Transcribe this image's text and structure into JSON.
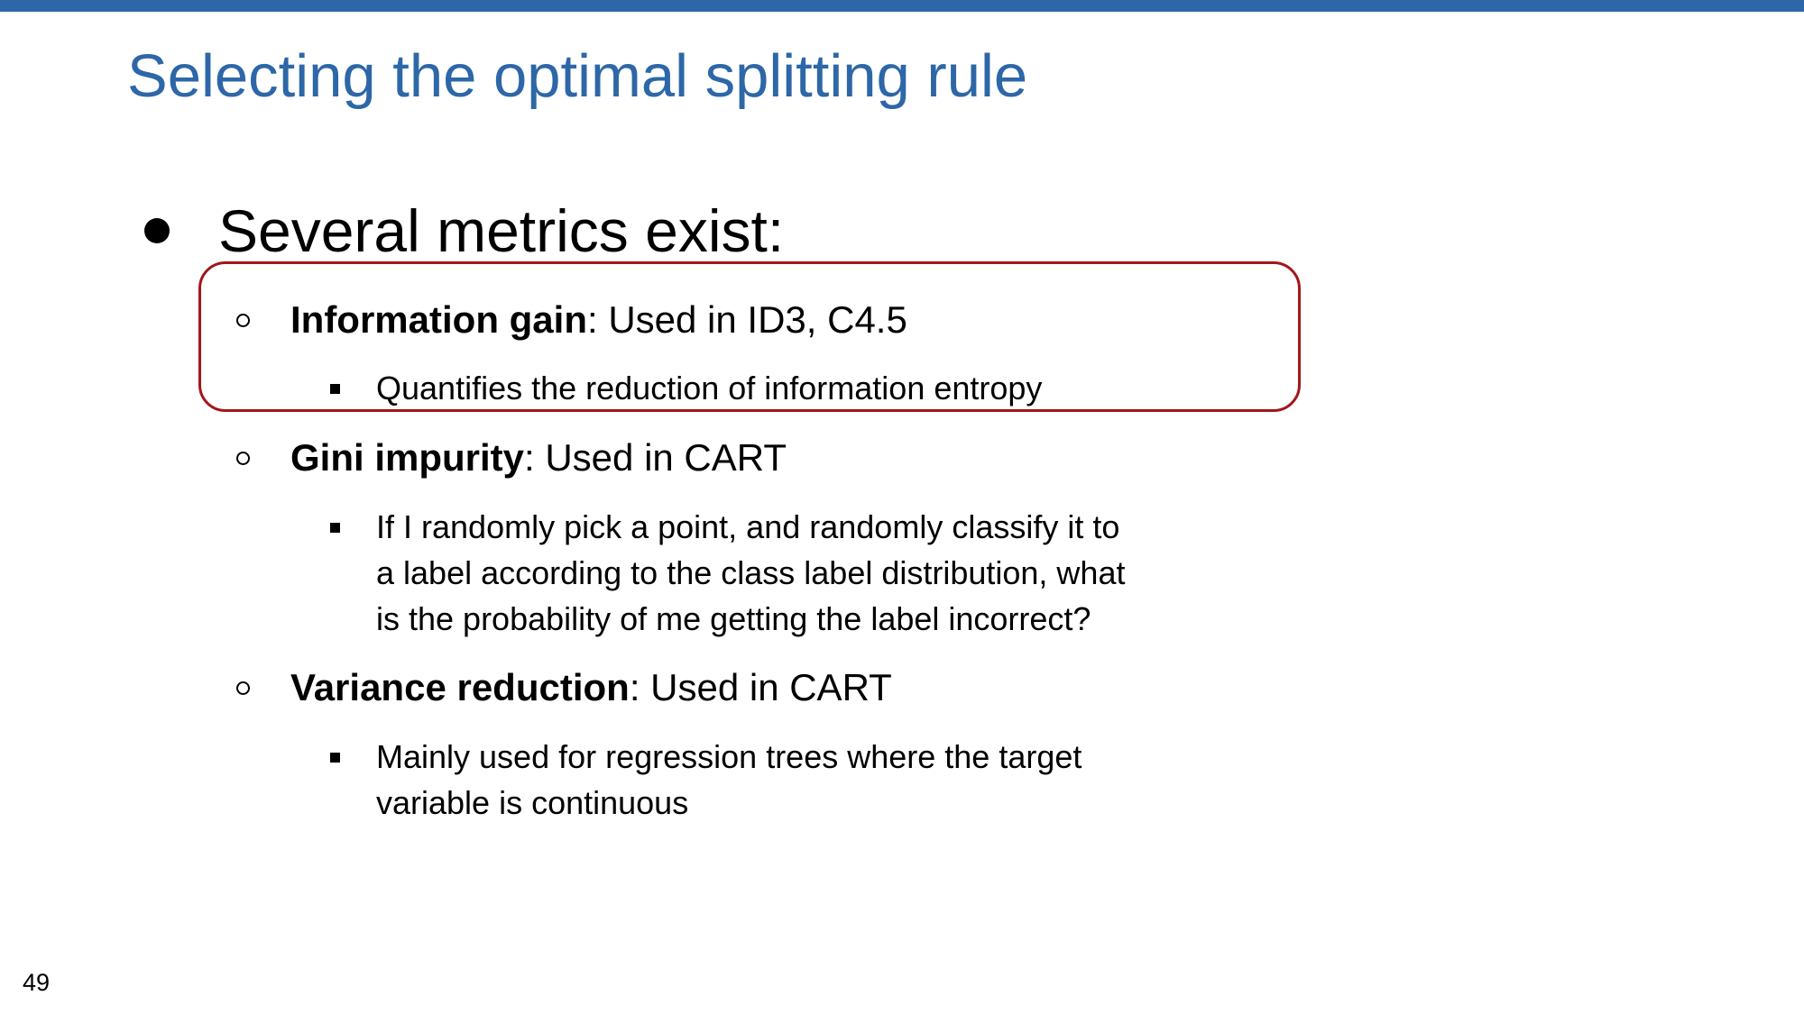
{
  "slide": {
    "title": "Selecting the optimal splitting rule",
    "page_number": "49",
    "accent_color": "#2d67a7",
    "highlight_color": "#a3161c",
    "main_bullet": "Several metrics exist:",
    "metrics": [
      {
        "name": "Information gain",
        "detail": ": Used in ID3, C4.5",
        "description_lines": [
          "Quantifies the reduction of information entropy"
        ]
      },
      {
        "name": "Gini impurity",
        "detail": ": Used in CART",
        "description_lines": [
          "If I randomly pick a point, and randomly classify it to",
          "a label according to the class label distribution, what",
          "is the probability of me getting the label incorrect?"
        ]
      },
      {
        "name": "Variance reduction",
        "detail": ": Used in CART",
        "description_lines": [
          "Mainly used for regression trees where the target",
          "variable is continuous"
        ]
      }
    ]
  }
}
